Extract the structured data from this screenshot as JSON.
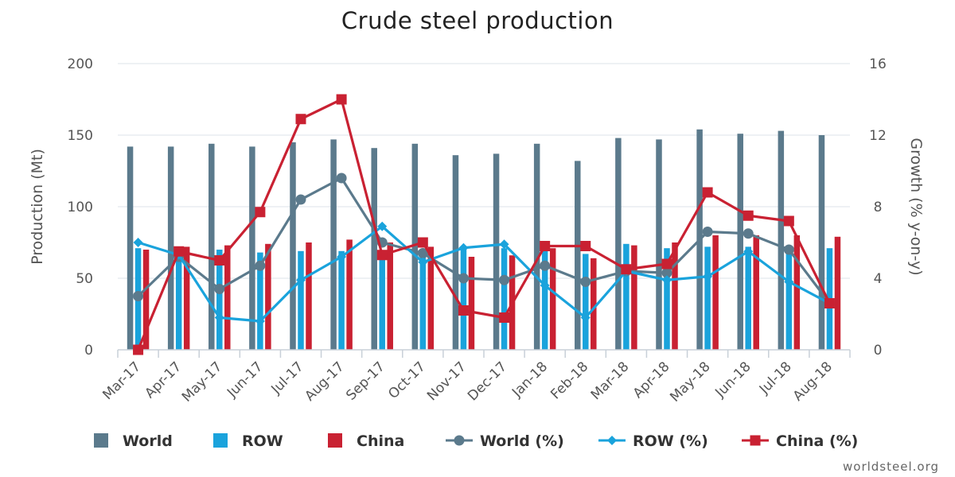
{
  "chart_data": {
    "type": "bar",
    "title": "Crude steel production",
    "xlabel": "",
    "ylabel": "Production (Mt)",
    "y2label": "Growth (% y-on-y)",
    "ylim": [
      0,
      200
    ],
    "y2lim": [
      0,
      16
    ],
    "yticks": [
      0,
      50,
      100,
      150,
      200
    ],
    "y2ticks": [
      0,
      4,
      8,
      12,
      16
    ],
    "categories": [
      "Mar-17",
      "Apr-17",
      "May-17",
      "Jun-17",
      "Jul-17",
      "Aug-17",
      "Sep-17",
      "Oct-17",
      "Nov-17",
      "Dec-17",
      "Jan-18",
      "Feb-18",
      "Mar-18",
      "Apr-18",
      "May-18",
      "Jun-18",
      "Jul-18",
      "Aug-18"
    ],
    "series": [
      {
        "name": "World",
        "kind": "bar",
        "axis": "left",
        "color": "#5b7a8c",
        "values": [
          142,
          142,
          144,
          142,
          145,
          147,
          141,
          144,
          136,
          137,
          144,
          132,
          148,
          147,
          154,
          151,
          153,
          150
        ]
      },
      {
        "name": "ROW",
        "kind": "bar",
        "axis": "left",
        "color": "#1aa3dc",
        "values": [
          71,
          70,
          70,
          68,
          69,
          69,
          66,
          70,
          72,
          71,
          72,
          67,
          74,
          71,
          72,
          72,
          72,
          71
        ]
      },
      {
        "name": "China",
        "kind": "bar",
        "axis": "left",
        "color": "#c92132",
        "values": [
          70,
          72,
          73,
          74,
          75,
          77,
          75,
          72,
          65,
          66,
          71,
          64,
          73,
          75,
          80,
          80,
          80,
          79
        ]
      },
      {
        "name": "World (%)",
        "kind": "line",
        "axis": "right",
        "color": "#5b7a8c",
        "marker": "circle",
        "values": [
          3.0,
          5.2,
          3.4,
          4.7,
          8.4,
          9.6,
          6.0,
          5.4,
          4.0,
          3.9,
          4.7,
          3.8,
          4.4,
          4.3,
          6.6,
          6.5,
          5.6,
          2.6
        ]
      },
      {
        "name": "ROW (%)",
        "kind": "line",
        "axis": "right",
        "color": "#1aa3dc",
        "marker": "diamond",
        "values": [
          6.0,
          5.3,
          1.8,
          1.6,
          3.9,
          5.2,
          6.9,
          4.9,
          5.7,
          5.9,
          3.6,
          1.8,
          4.4,
          3.9,
          4.1,
          5.5,
          3.8,
          2.6
        ]
      },
      {
        "name": "China (%)",
        "kind": "line",
        "axis": "right",
        "color": "#c92132",
        "marker": "square",
        "values": [
          0.0,
          5.5,
          5.0,
          7.7,
          12.9,
          14.0,
          5.3,
          6.0,
          2.2,
          1.8,
          5.8,
          5.8,
          4.5,
          4.8,
          8.8,
          7.5,
          7.2,
          2.6
        ]
      }
    ],
    "legend_position": "bottom",
    "grid": true
  },
  "credit": "worldsteel.org"
}
